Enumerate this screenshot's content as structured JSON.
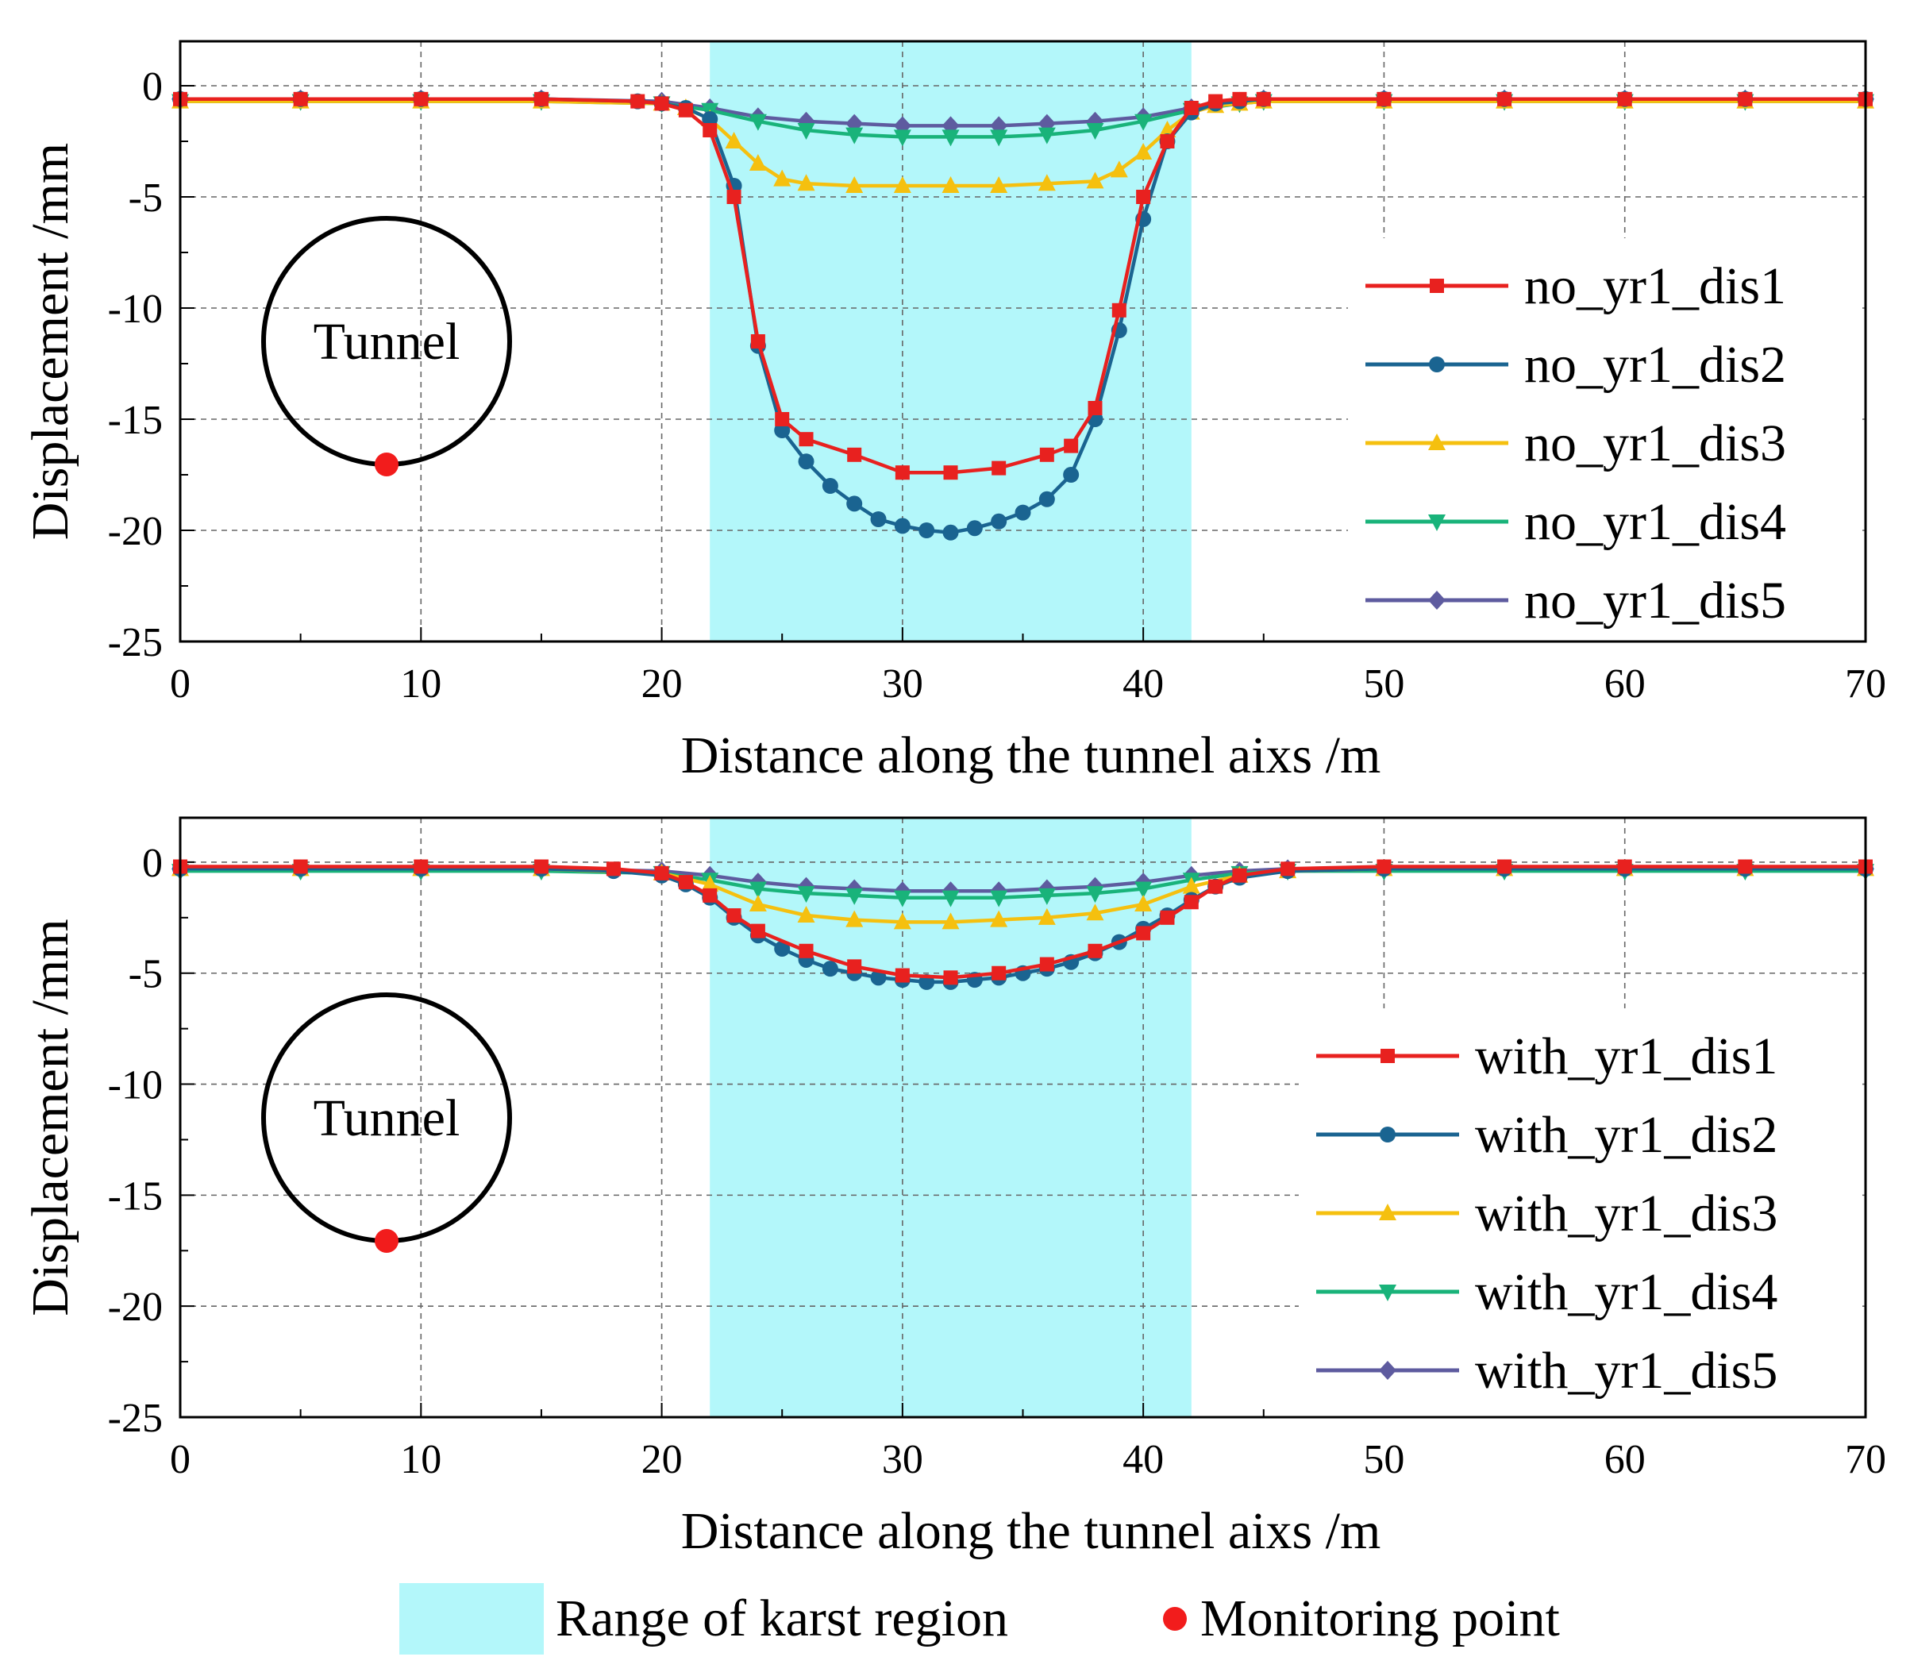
{
  "chart_data": [
    {
      "type": "line",
      "xlabel": "Distance along the tunnel aixs /m",
      "ylabel": "Displacement /mm",
      "xlim": [
        0,
        70
      ],
      "ylim": [
        -25,
        2
      ],
      "xticks": [
        0,
        10,
        20,
        30,
        40,
        50,
        60,
        70
      ],
      "yticks": [
        0,
        -5,
        -10,
        -15,
        -20,
        -25
      ],
      "shaded_region": [
        22,
        42
      ],
      "inset_label": "Tunnel",
      "legend_position": "right",
      "series": [
        {
          "name": "no_yr1_dis1",
          "color": "#e8211f",
          "marker": "square",
          "x": [
            0,
            5,
            10,
            15,
            19,
            20,
            21,
            22,
            23,
            24,
            25,
            26,
            28,
            30,
            32,
            34,
            36,
            37,
            38,
            39,
            40,
            41,
            42,
            43,
            44,
            45,
            50,
            55,
            60,
            65,
            70
          ],
          "y": [
            -0.6,
            -0.6,
            -0.6,
            -0.6,
            -0.7,
            -0.8,
            -1.1,
            -2.0,
            -5.0,
            -11.5,
            -15.0,
            -15.9,
            -16.6,
            -17.4,
            -17.4,
            -17.2,
            -16.6,
            -16.2,
            -14.5,
            -10.1,
            -5.0,
            -2.5,
            -1.0,
            -0.7,
            -0.6,
            -0.6,
            -0.6,
            -0.6,
            -0.6,
            -0.6,
            -0.6
          ]
        },
        {
          "name": "no_yr1_dis2",
          "color": "#1a6491",
          "marker": "circle",
          "x": [
            0,
            5,
            10,
            15,
            19,
            20,
            21,
            22,
            23,
            24,
            25,
            26,
            27,
            28,
            29,
            30,
            31,
            32,
            33,
            34,
            35,
            36,
            37,
            38,
            39,
            40,
            41,
            42,
            43,
            44,
            45,
            50,
            55,
            60,
            65,
            70
          ],
          "y": [
            -0.6,
            -0.6,
            -0.6,
            -0.6,
            -0.7,
            -0.8,
            -1.0,
            -1.5,
            -4.5,
            -11.7,
            -15.5,
            -16.9,
            -18.0,
            -18.8,
            -19.5,
            -19.8,
            -20.0,
            -20.1,
            -19.9,
            -19.6,
            -19.2,
            -18.6,
            -17.5,
            -15.0,
            -11.0,
            -6.0,
            -2.5,
            -1.2,
            -0.8,
            -0.7,
            -0.6,
            -0.6,
            -0.6,
            -0.6,
            -0.6,
            -0.6
          ]
        },
        {
          "name": "no_yr1_dis3",
          "color": "#f5c00f",
          "marker": "triangle-up",
          "x": [
            0,
            5,
            10,
            15,
            20,
            21,
            22,
            23,
            24,
            25,
            26,
            28,
            30,
            32,
            34,
            36,
            38,
            39,
            40,
            41,
            42,
            43,
            44,
            45,
            50,
            55,
            60,
            65,
            70
          ],
          "y": [
            -0.7,
            -0.7,
            -0.7,
            -0.7,
            -0.8,
            -1.0,
            -1.5,
            -2.5,
            -3.5,
            -4.2,
            -4.4,
            -4.5,
            -4.5,
            -4.5,
            -4.5,
            -4.4,
            -4.3,
            -3.8,
            -3.0,
            -2.0,
            -1.2,
            -0.9,
            -0.8,
            -0.7,
            -0.7,
            -0.7,
            -0.7,
            -0.7,
            -0.7
          ]
        },
        {
          "name": "no_yr1_dis4",
          "color": "#19b37a",
          "marker": "triangle-down",
          "x": [
            0,
            5,
            10,
            15,
            20,
            22,
            24,
            26,
            28,
            30,
            32,
            34,
            36,
            38,
            40,
            42,
            44,
            45,
            50,
            55,
            60,
            65,
            70
          ],
          "y": [
            -0.7,
            -0.7,
            -0.7,
            -0.7,
            -0.8,
            -1.1,
            -1.6,
            -2.0,
            -2.2,
            -2.3,
            -2.3,
            -2.3,
            -2.2,
            -2.0,
            -1.6,
            -1.1,
            -0.8,
            -0.7,
            -0.7,
            -0.7,
            -0.7,
            -0.7,
            -0.7
          ]
        },
        {
          "name": "no_yr1_dis5",
          "color": "#5e5b9f",
          "marker": "diamond",
          "x": [
            0,
            5,
            10,
            15,
            20,
            22,
            24,
            26,
            28,
            30,
            32,
            34,
            36,
            38,
            40,
            42,
            44,
            45,
            50,
            55,
            60,
            65,
            70
          ],
          "y": [
            -0.6,
            -0.6,
            -0.6,
            -0.6,
            -0.7,
            -1.0,
            -1.4,
            -1.6,
            -1.7,
            -1.8,
            -1.8,
            -1.8,
            -1.7,
            -1.6,
            -1.4,
            -1.0,
            -0.7,
            -0.6,
            -0.6,
            -0.6,
            -0.6,
            -0.6,
            -0.6
          ]
        }
      ]
    },
    {
      "type": "line",
      "xlabel": "Distance along the tunnel aixs /m",
      "ylabel": "Displacement /mm",
      "xlim": [
        0,
        70
      ],
      "ylim": [
        -25,
        2
      ],
      "xticks": [
        0,
        10,
        20,
        30,
        40,
        50,
        60,
        70
      ],
      "yticks": [
        0,
        -5,
        -10,
        -15,
        -20,
        -25
      ],
      "shaded_region": [
        22,
        42
      ],
      "inset_label": "Tunnel",
      "legend_position": "right",
      "series": [
        {
          "name": "with_yr1_dis1",
          "color": "#e8211f",
          "marker": "square",
          "x": [
            0,
            5,
            10,
            15,
            18,
            20,
            21,
            22,
            23,
            24,
            26,
            28,
            30,
            32,
            34,
            36,
            38,
            40,
            41,
            42,
            43,
            44,
            46,
            50,
            55,
            60,
            65,
            70
          ],
          "y": [
            -0.2,
            -0.2,
            -0.2,
            -0.2,
            -0.3,
            -0.5,
            -0.9,
            -1.5,
            -2.4,
            -3.1,
            -4.0,
            -4.7,
            -5.1,
            -5.2,
            -5.0,
            -4.6,
            -4.0,
            -3.2,
            -2.5,
            -1.8,
            -1.1,
            -0.6,
            -0.3,
            -0.2,
            -0.2,
            -0.2,
            -0.2,
            -0.2
          ]
        },
        {
          "name": "with_yr1_dis2",
          "color": "#1a6491",
          "marker": "circle",
          "x": [
            0,
            5,
            10,
            15,
            18,
            20,
            21,
            22,
            23,
            24,
            25,
            26,
            27,
            28,
            29,
            30,
            31,
            32,
            33,
            34,
            35,
            36,
            37,
            38,
            39,
            40,
            41,
            42,
            43,
            44,
            46,
            50,
            55,
            60,
            65,
            70
          ],
          "y": [
            -0.3,
            -0.3,
            -0.3,
            -0.3,
            -0.4,
            -0.6,
            -1.0,
            -1.6,
            -2.5,
            -3.3,
            -3.9,
            -4.4,
            -4.8,
            -5.0,
            -5.2,
            -5.3,
            -5.4,
            -5.4,
            -5.3,
            -5.2,
            -5.0,
            -4.8,
            -4.5,
            -4.1,
            -3.6,
            -3.0,
            -2.4,
            -1.7,
            -1.1,
            -0.7,
            -0.4,
            -0.3,
            -0.3,
            -0.3,
            -0.3,
            -0.3
          ]
        },
        {
          "name": "with_yr1_dis3",
          "color": "#f5c00f",
          "marker": "triangle-up",
          "x": [
            0,
            5,
            10,
            15,
            20,
            22,
            24,
            26,
            28,
            30,
            32,
            34,
            36,
            38,
            40,
            42,
            44,
            46,
            50,
            55,
            60,
            65,
            70
          ],
          "y": [
            -0.3,
            -0.3,
            -0.3,
            -0.3,
            -0.5,
            -1.0,
            -1.9,
            -2.4,
            -2.6,
            -2.7,
            -2.7,
            -2.6,
            -2.5,
            -2.3,
            -1.9,
            -1.1,
            -0.6,
            -0.4,
            -0.3,
            -0.3,
            -0.3,
            -0.3,
            -0.3
          ]
        },
        {
          "name": "with_yr1_dis4",
          "color": "#19b37a",
          "marker": "triangle-down",
          "x": [
            0,
            5,
            10,
            15,
            20,
            22,
            24,
            26,
            28,
            30,
            32,
            34,
            36,
            38,
            40,
            42,
            44,
            46,
            50,
            55,
            60,
            65,
            70
          ],
          "y": [
            -0.4,
            -0.4,
            -0.4,
            -0.4,
            -0.5,
            -0.8,
            -1.2,
            -1.4,
            -1.5,
            -1.6,
            -1.6,
            -1.6,
            -1.5,
            -1.4,
            -1.2,
            -0.8,
            -0.5,
            -0.4,
            -0.4,
            -0.4,
            -0.4,
            -0.4,
            -0.4
          ]
        },
        {
          "name": "with_yr1_dis5",
          "color": "#5e5b9f",
          "marker": "diamond",
          "x": [
            0,
            5,
            10,
            15,
            20,
            22,
            24,
            26,
            28,
            30,
            32,
            34,
            36,
            38,
            40,
            42,
            44,
            46,
            50,
            55,
            60,
            65,
            70
          ],
          "y": [
            -0.3,
            -0.3,
            -0.3,
            -0.3,
            -0.4,
            -0.6,
            -0.9,
            -1.1,
            -1.2,
            -1.3,
            -1.3,
            -1.3,
            -1.2,
            -1.1,
            -0.9,
            -0.6,
            -0.4,
            -0.3,
            -0.3,
            -0.3,
            -0.3,
            -0.3,
            -0.3
          ]
        }
      ]
    }
  ],
  "legend_bottom": {
    "region_label": "Range of karst region",
    "point_label": "Monitoring point",
    "region_color": "#b3f7fa",
    "point_color": "#f21c1c"
  }
}
